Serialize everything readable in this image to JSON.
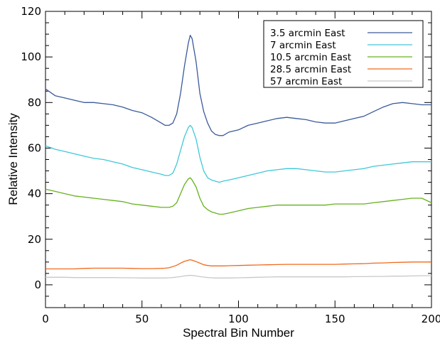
{
  "chart_data": {
    "type": "line",
    "xlabel": "Spectral Bin Number",
    "ylabel": "Relative Intensity",
    "xlim": [
      0,
      200
    ],
    "ylim": [
      -10,
      120
    ],
    "xticks": [
      0,
      50,
      100,
      150,
      200
    ],
    "yticks": [
      0,
      20,
      40,
      60,
      80,
      100,
      120
    ],
    "grid": false,
    "legend_position": "top-right",
    "x": [
      0,
      5,
      10,
      15,
      20,
      25,
      30,
      35,
      40,
      45,
      50,
      55,
      60,
      62,
      64,
      66,
      68,
      70,
      72,
      74,
      75,
      76,
      78,
      80,
      82,
      84,
      86,
      88,
      90,
      92,
      95,
      100,
      105,
      110,
      115,
      120,
      125,
      130,
      135,
      140,
      145,
      150,
      155,
      160,
      165,
      170,
      175,
      180,
      185,
      190,
      195,
      200
    ],
    "series": [
      {
        "name": "3.5  arcmin  East",
        "color": "#3a5a9a",
        "values": [
          86,
          83,
          82,
          81,
          80,
          80,
          79.5,
          79,
          78,
          76.5,
          75.5,
          73.5,
          71,
          70,
          70,
          71,
          75,
          84,
          96,
          106,
          109.5,
          108,
          98,
          84,
          76,
          71,
          67.5,
          66,
          65.5,
          65.5,
          67,
          68,
          70,
          71,
          72,
          73,
          73.5,
          73,
          72.5,
          71.5,
          71,
          71,
          72,
          73,
          74,
          76,
          78,
          79.5,
          80,
          79.5,
          79,
          79
        ]
      },
      {
        "name": "7    arcmin  East",
        "color": "#40c8d8",
        "values": [
          61,
          59.5,
          58.5,
          57.5,
          56.5,
          55.5,
          55,
          54,
          53,
          51.5,
          50.5,
          49.5,
          48.5,
          48,
          48,
          49,
          53,
          59,
          65,
          69,
          70,
          69,
          64,
          56,
          50,
          47,
          46,
          45.5,
          45,
          45.5,
          46,
          47,
          48,
          49,
          50,
          50.5,
          51,
          51,
          50.5,
          50,
          49.5,
          49.5,
          50,
          50.5,
          51,
          52,
          52.5,
          53,
          53.5,
          54,
          54,
          54
        ]
      },
      {
        "name": "10.5  arcmin  East",
        "color": "#66b21f",
        "values": [
          42,
          41,
          40,
          39,
          38.5,
          38,
          37.5,
          37,
          36.5,
          35.5,
          35,
          34.5,
          34,
          34,
          34,
          34.5,
          36,
          40,
          44,
          46.5,
          47,
          46,
          43,
          38,
          34.5,
          33,
          32,
          31.5,
          31,
          31,
          31.5,
          32.5,
          33.5,
          34,
          34.5,
          35,
          35,
          35,
          35,
          35,
          35,
          35.5,
          35.5,
          35.5,
          35.5,
          36,
          36.5,
          37,
          37.5,
          38,
          38,
          36
        ]
      },
      {
        "name": "28.5  arcmin  East",
        "color": "#f06a1e",
        "values": [
          7,
          7,
          7,
          7,
          7.2,
          7.3,
          7.3,
          7.3,
          7.3,
          7.2,
          7.1,
          7.1,
          7.2,
          7.3,
          7.5,
          8,
          8.6,
          9.5,
          10.3,
          10.8,
          11,
          10.8,
          10.2,
          9.5,
          8.8,
          8.5,
          8.3,
          8.3,
          8.3,
          8.3,
          8.4,
          8.5,
          8.6,
          8.7,
          8.8,
          8.9,
          9,
          9,
          9,
          9,
          9,
          9,
          9.1,
          9.2,
          9.3,
          9.5,
          9.6,
          9.8,
          9.9,
          10,
          10,
          10
        ]
      },
      {
        "name": "57    arcmin  East",
        "color": "#c8c8c8",
        "values": [
          3.3,
          3.3,
          3.3,
          3.2,
          3.2,
          3.2,
          3.2,
          3.2,
          3.1,
          3.1,
          3,
          3,
          3,
          3,
          3.1,
          3.2,
          3.4,
          3.6,
          3.9,
          4.1,
          4.2,
          4.1,
          3.9,
          3.6,
          3.4,
          3.2,
          3.1,
          3,
          3,
          3,
          3,
          3.1,
          3.2,
          3.3,
          3.4,
          3.5,
          3.5,
          3.5,
          3.5,
          3.5,
          3.5,
          3.5,
          3.5,
          3.6,
          3.6,
          3.7,
          3.7,
          3.8,
          3.8,
          3.9,
          4,
          4
        ]
      }
    ]
  }
}
